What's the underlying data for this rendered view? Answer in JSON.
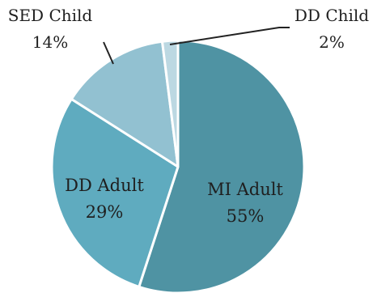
{
  "chart_data": {
    "type": "pie",
    "slices": [
      {
        "label": "MI Adult",
        "pct_label": "55%",
        "value": 55,
        "color": "#4f93a3"
      },
      {
        "label": "DD Adult",
        "pct_label": "29%",
        "value": 29,
        "color": "#5fabbf"
      },
      {
        "label": "SED Child",
        "pct_label": "14%",
        "value": 14,
        "color": "#92c1d1"
      },
      {
        "label": "DD Child",
        "pct_label": "2%",
        "value": 2,
        "color": "#bcd8e2"
      }
    ],
    "legend": "none",
    "start": "top",
    "direction": "clockwise"
  }
}
